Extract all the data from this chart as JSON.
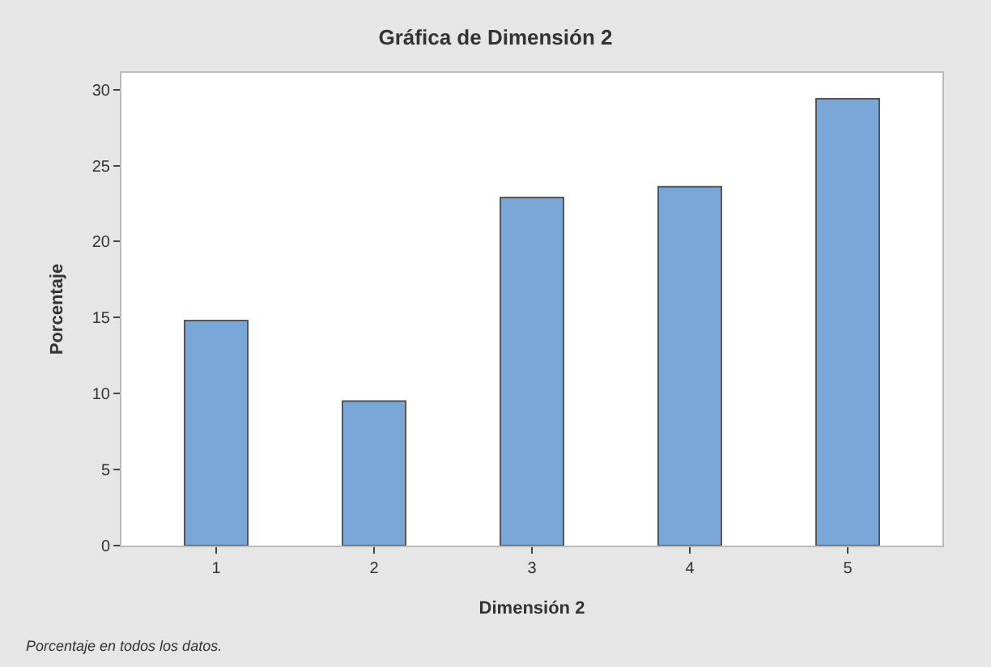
{
  "chart_data": {
    "type": "bar",
    "title": "Gráfica de Dimensión 2",
    "xlabel": "Dimensión 2",
    "ylabel": "Porcentaje",
    "categories": [
      "1",
      "2",
      "3",
      "4",
      "5"
    ],
    "values": [
      14.8,
      9.5,
      22.9,
      23.6,
      29.4
    ],
    "color": "#7ba7d8",
    "ylim": [
      0,
      31.1
    ],
    "yticks": [
      0,
      5,
      10,
      15,
      20,
      25,
      30
    ],
    "annotations": [
      "Porcentaje en todos los datos."
    ]
  }
}
